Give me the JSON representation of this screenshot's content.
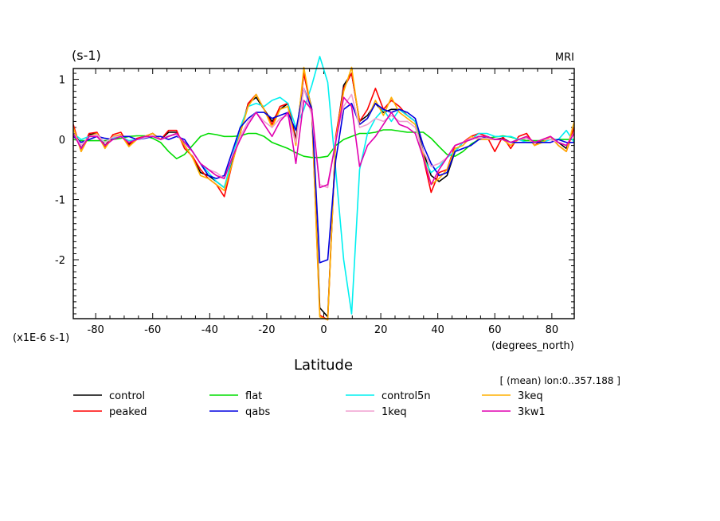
{
  "chart_data": {
    "type": "line",
    "units_label": "(s-1)",
    "model_label": "MRI",
    "scale_label": "(x1E-6 s-1)",
    "xlabel": "Latitude",
    "x_units": "(degrees_north)",
    "subtitle": "[ (mean) lon:0..357.188 ]",
    "xlim": [
      -87.86,
      87.86
    ],
    "ylim": [
      -2.98,
      1.18
    ],
    "x_ticks": [
      -80,
      -60,
      -40,
      -20,
      0,
      20,
      40,
      60,
      80
    ],
    "x_tick_labels": [
      "-80",
      "-60",
      "-40",
      "-20",
      "0",
      "20",
      "40",
      "60",
      "80"
    ],
    "y_ticks": [
      -2,
      -1,
      0,
      1
    ],
    "y_tick_labels": [
      "-2",
      "-1",
      "0",
      "1"
    ],
    "x": [
      -87.86,
      -85.1,
      -82.31,
      -79.53,
      -76.74,
      -73.95,
      -71.16,
      -68.37,
      -65.58,
      -62.79,
      -60.0,
      -57.21,
      -54.42,
      -51.63,
      -48.84,
      -46.04,
      -43.25,
      -40.46,
      -37.67,
      -34.88,
      -32.09,
      -29.3,
      -26.51,
      -23.72,
      -20.93,
      -18.14,
      -15.35,
      -12.56,
      -9.77,
      -6.98,
      -4.19,
      -1.4,
      1.4,
      4.19,
      6.98,
      9.77,
      12.56,
      15.35,
      18.14,
      20.93,
      23.72,
      26.51,
      29.3,
      32.09,
      34.88,
      37.67,
      40.46,
      43.25,
      46.04,
      48.84,
      51.63,
      54.42,
      57.21,
      60.0,
      62.79,
      65.58,
      68.37,
      71.16,
      73.95,
      76.74,
      79.53,
      82.31,
      85.1,
      87.86
    ],
    "series": [
      {
        "name": "control",
        "color": "#000000",
        "values": [
          0.2,
          -0.15,
          0.08,
          0.1,
          -0.1,
          0.05,
          0.08,
          -0.08,
          0.0,
          0.05,
          0.1,
          0.0,
          0.12,
          0.12,
          -0.1,
          -0.3,
          -0.55,
          -0.6,
          -0.7,
          -0.8,
          -0.35,
          0.1,
          0.6,
          0.7,
          0.5,
          0.3,
          0.5,
          0.6,
          0.0,
          1.1,
          0.5,
          -2.8,
          -2.95,
          0.0,
          0.9,
          1.1,
          0.3,
          0.4,
          0.6,
          0.45,
          0.5,
          0.5,
          0.4,
          0.3,
          -0.2,
          -0.6,
          -0.7,
          -0.6,
          -0.2,
          -0.05,
          0.0,
          0.05,
          0.05,
          0.0,
          0.02,
          -0.05,
          0.0,
          0.02,
          -0.05,
          -0.02,
          0.0,
          -0.05,
          -0.15,
          0.2
        ]
      },
      {
        "name": "peaked",
        "color": "#ff0000",
        "values": [
          0.25,
          -0.2,
          0.1,
          0.12,
          -0.12,
          0.08,
          0.12,
          -0.1,
          0.02,
          0.05,
          0.1,
          0.0,
          0.15,
          0.15,
          -0.15,
          -0.28,
          -0.5,
          -0.65,
          -0.75,
          -0.95,
          -0.4,
          0.1,
          0.6,
          0.75,
          0.5,
          0.25,
          0.55,
          0.6,
          -0.05,
          1.1,
          0.45,
          -2.92,
          -3.0,
          0.05,
          0.85,
          1.1,
          0.3,
          0.5,
          0.85,
          0.5,
          0.65,
          0.55,
          0.4,
          0.3,
          -0.3,
          -0.88,
          -0.55,
          -0.5,
          -0.1,
          -0.05,
          0.05,
          0.1,
          0.05,
          -0.2,
          0.05,
          -0.15,
          0.05,
          0.1,
          -0.1,
          0.0,
          0.05,
          -0.1,
          -0.2,
          0.2
        ]
      },
      {
        "name": "flat",
        "color": "#00dd00",
        "values": [
          0.0,
          -0.02,
          -0.02,
          -0.02,
          -0.02,
          0.0,
          0.02,
          0.05,
          0.06,
          0.06,
          0.02,
          -0.05,
          -0.2,
          -0.32,
          -0.25,
          -0.1,
          0.05,
          0.1,
          0.08,
          0.05,
          0.05,
          0.06,
          0.1,
          0.1,
          0.05,
          -0.05,
          -0.1,
          -0.15,
          -0.22,
          -0.28,
          -0.3,
          -0.3,
          -0.28,
          -0.1,
          0.0,
          0.05,
          0.1,
          0.1,
          0.12,
          0.16,
          0.16,
          0.14,
          0.12,
          0.12,
          0.12,
          0.02,
          -0.12,
          -0.25,
          -0.28,
          -0.2,
          -0.08,
          0.0,
          0.02,
          0.04,
          0.06,
          0.04,
          0.0,
          -0.02,
          -0.02,
          -0.02,
          0.0,
          0.0,
          0.0,
          0.0
        ]
      },
      {
        "name": "control5n",
        "color": "#00f0f0",
        "values": [
          0.1,
          0.0,
          0.05,
          0.05,
          -0.05,
          0.02,
          0.05,
          -0.02,
          0.0,
          0.02,
          0.05,
          0.0,
          0.05,
          0.1,
          -0.05,
          -0.2,
          -0.4,
          -0.55,
          -0.7,
          -0.8,
          -0.3,
          0.2,
          0.55,
          0.6,
          0.55,
          0.65,
          0.7,
          0.6,
          0.2,
          0.5,
          0.9,
          1.38,
          0.95,
          -0.5,
          -2.0,
          -2.9,
          -0.5,
          0.1,
          0.35,
          0.5,
          0.3,
          0.5,
          0.4,
          0.3,
          -0.3,
          -0.55,
          -0.45,
          -0.3,
          -0.2,
          -0.05,
          0.0,
          0.1,
          0.1,
          0.05,
          0.05,
          0.05,
          0.0,
          -0.05,
          -0.05,
          -0.05,
          0.0,
          0.0,
          0.15,
          -0.05
        ]
      },
      {
        "name": "3keq",
        "color": "#ffb000",
        "values": [
          0.2,
          -0.2,
          0.05,
          0.1,
          -0.15,
          0.05,
          0.08,
          -0.12,
          0.0,
          0.05,
          0.1,
          0.0,
          0.05,
          0.1,
          -0.1,
          -0.3,
          -0.6,
          -0.65,
          -0.75,
          -0.85,
          -0.4,
          0.1,
          0.55,
          0.75,
          0.5,
          0.2,
          0.5,
          0.55,
          -0.1,
          1.2,
          0.45,
          -2.95,
          -3.0,
          0.0,
          0.8,
          1.2,
          0.25,
          0.35,
          0.65,
          0.4,
          0.7,
          0.45,
          0.35,
          0.25,
          -0.25,
          -0.75,
          -0.65,
          -0.5,
          -0.15,
          -0.1,
          0.05,
          0.0,
          0.0,
          0.0,
          0.0,
          -0.1,
          0.0,
          0.05,
          -0.1,
          -0.05,
          0.05,
          -0.1,
          -0.2,
          0.3
        ]
      },
      {
        "name": "qabs",
        "color": "#0000e0",
        "values": [
          0.05,
          -0.05,
          0.0,
          0.05,
          0.02,
          0.0,
          0.05,
          0.05,
          0.0,
          0.02,
          0.05,
          0.05,
          0.0,
          0.05,
          0.0,
          -0.2,
          -0.4,
          -0.6,
          -0.65,
          -0.6,
          -0.2,
          0.2,
          0.35,
          0.45,
          0.45,
          0.35,
          0.4,
          0.45,
          0.15,
          0.85,
          0.5,
          -2.05,
          -2.0,
          -0.35,
          0.5,
          0.6,
          0.25,
          0.35,
          0.6,
          0.5,
          0.45,
          0.5,
          0.45,
          0.35,
          -0.1,
          -0.4,
          -0.6,
          -0.55,
          -0.2,
          -0.15,
          -0.1,
          0.0,
          0.05,
          0.0,
          0.0,
          -0.05,
          -0.05,
          -0.05,
          -0.05,
          -0.05,
          -0.05,
          0.0,
          -0.05,
          -0.05
        ]
      },
      {
        "name": "1keq",
        "color": "#f0a0d0",
        "values": [
          0.1,
          -0.1,
          0.05,
          0.08,
          -0.05,
          0.04,
          0.06,
          -0.05,
          0.0,
          0.03,
          0.06,
          0.0,
          0.06,
          0.08,
          -0.05,
          -0.2,
          -0.4,
          -0.5,
          -0.55,
          -0.65,
          -0.3,
          0.05,
          0.3,
          0.45,
          0.3,
          0.2,
          0.35,
          0.4,
          -0.05,
          0.85,
          0.4,
          -0.75,
          -0.8,
          0.0,
          0.55,
          0.75,
          0.2,
          0.25,
          0.35,
          0.3,
          0.4,
          0.3,
          0.3,
          0.2,
          -0.2,
          -0.45,
          -0.4,
          -0.3,
          -0.1,
          -0.05,
          0.02,
          0.02,
          0.02,
          0.0,
          0.0,
          -0.05,
          0.0,
          0.02,
          -0.05,
          0.0,
          0.0,
          -0.05,
          -0.1,
          0.12
        ]
      },
      {
        "name": "3kw1",
        "color": "#e000b0",
        "values": [
          0.1,
          -0.15,
          0.05,
          0.05,
          -0.1,
          0.0,
          0.05,
          -0.05,
          0.0,
          0.05,
          0.05,
          0.0,
          0.05,
          0.1,
          -0.05,
          -0.2,
          -0.4,
          -0.5,
          -0.6,
          -0.65,
          -0.3,
          0.0,
          0.25,
          0.45,
          0.25,
          0.05,
          0.3,
          0.45,
          -0.4,
          0.65,
          0.5,
          -0.8,
          -0.75,
          -0.05,
          0.7,
          0.55,
          -0.45,
          -0.1,
          0.05,
          0.25,
          0.45,
          0.25,
          0.2,
          0.1,
          -0.3,
          -0.75,
          -0.5,
          -0.3,
          -0.1,
          -0.05,
          0.0,
          0.05,
          0.05,
          0.0,
          0.0,
          -0.05,
          0.0,
          0.05,
          -0.05,
          0.0,
          0.05,
          -0.05,
          -0.1,
          0.1
        ]
      }
    ],
    "legend": {
      "placement": "below-chart",
      "columns": 4,
      "order": [
        "control",
        "flat",
        "control5n",
        "3keq",
        "peaked",
        "qabs",
        "1keq",
        "3kw1"
      ]
    }
  }
}
